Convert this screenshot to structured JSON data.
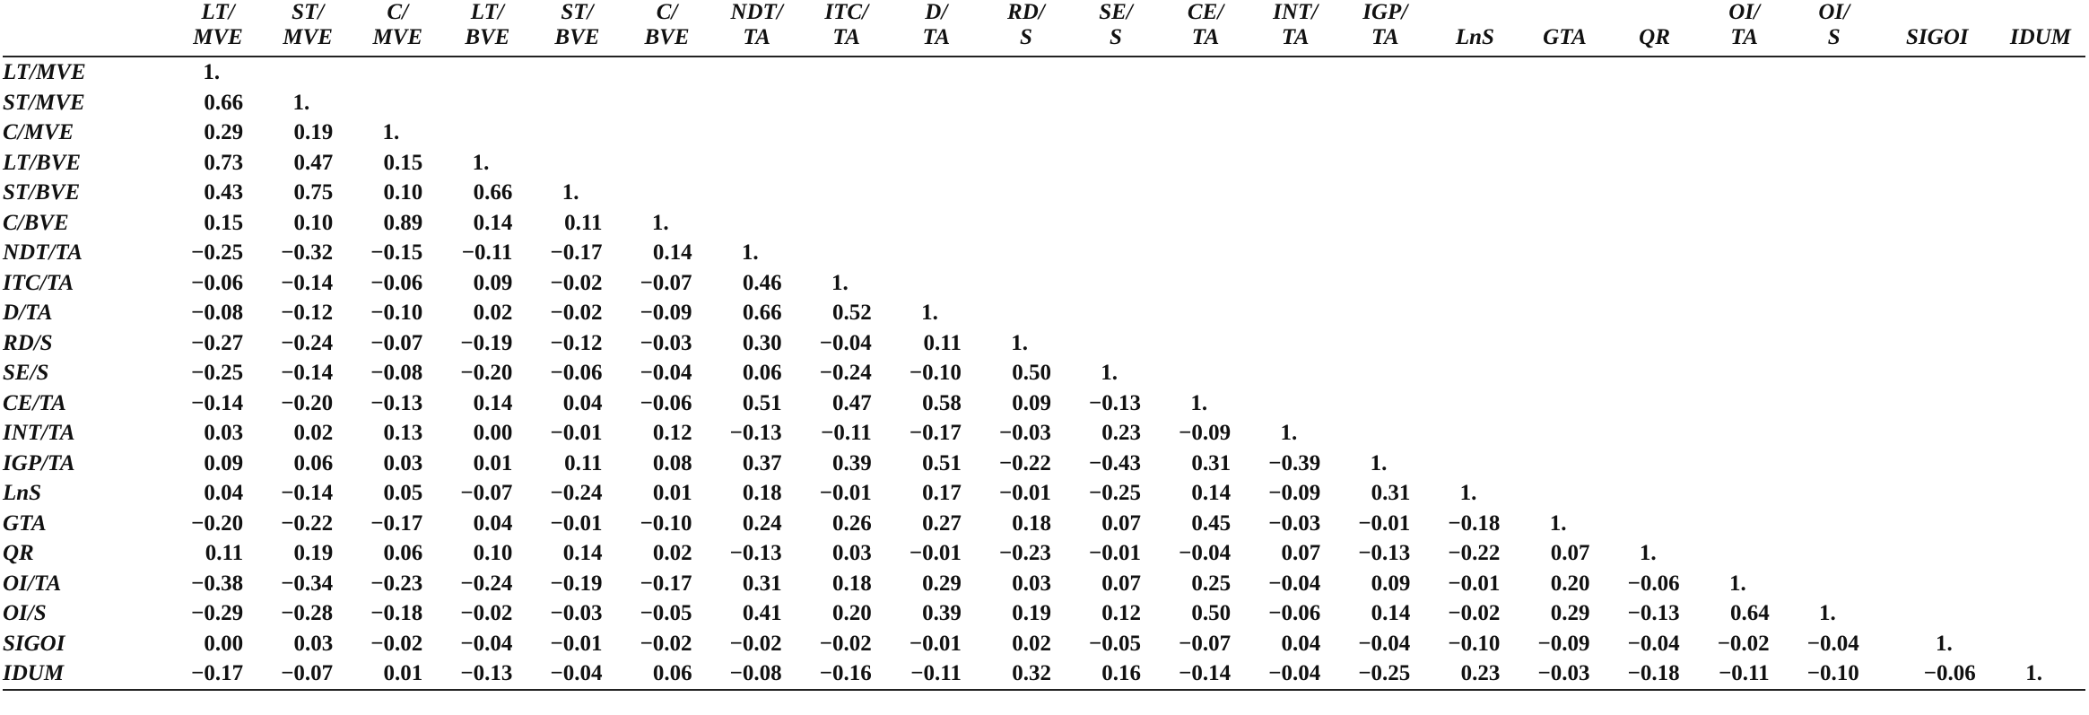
{
  "table": {
    "columns": [
      [
        "LT/",
        "MVE"
      ],
      [
        "ST/",
        "MVE"
      ],
      [
        "C/",
        "MVE"
      ],
      [
        "LT/",
        "BVE"
      ],
      [
        "ST/",
        "BVE"
      ],
      [
        "C/",
        "BVE"
      ],
      [
        "NDT/",
        "TA"
      ],
      [
        "ITC/",
        "TA"
      ],
      [
        "D/",
        "TA"
      ],
      [
        "RD/",
        "S"
      ],
      [
        "SE/",
        "S"
      ],
      [
        "CE/",
        "TA"
      ],
      [
        "INT/",
        "TA"
      ],
      [
        "IGP/",
        "TA"
      ],
      [
        "LnS"
      ],
      [
        "GTA"
      ],
      [
        "QR"
      ],
      [
        "OI/",
        "TA"
      ],
      [
        "OI/",
        "S"
      ],
      [
        "SIGOI"
      ],
      [
        "IDUM"
      ]
    ],
    "rows": [
      {
        "label": "LT/MVE",
        "values": [
          "1."
        ]
      },
      {
        "label": "ST/MVE",
        "values": [
          "0.66",
          "1."
        ]
      },
      {
        "label": "C/MVE",
        "values": [
          "0.29",
          "0.19",
          "1."
        ]
      },
      {
        "label": "LT/BVE",
        "values": [
          "0.73",
          "0.47",
          "0.15",
          "1."
        ]
      },
      {
        "label": "ST/BVE",
        "values": [
          "0.43",
          "0.75",
          "0.10",
          "0.66",
          "1."
        ]
      },
      {
        "label": "C/BVE",
        "values": [
          "0.15",
          "0.10",
          "0.89",
          "0.14",
          "0.11",
          "1."
        ]
      },
      {
        "label": "NDT/TA",
        "values": [
          "−0.25",
          "−0.32",
          "−0.15",
          "−0.11",
          "−0.17",
          "0.14",
          "1."
        ]
      },
      {
        "label": "ITC/TA",
        "values": [
          "−0.06",
          "−0.14",
          "−0.06",
          "0.09",
          "−0.02",
          "−0.07",
          "0.46",
          "1."
        ]
      },
      {
        "label": "D/TA",
        "values": [
          "−0.08",
          "−0.12",
          "−0.10",
          "0.02",
          "−0.02",
          "−0.09",
          "0.66",
          "0.52",
          "1."
        ]
      },
      {
        "label": "RD/S",
        "values": [
          "−0.27",
          "−0.24",
          "−0.07",
          "−0.19",
          "−0.12",
          "−0.03",
          "0.30",
          "−0.04",
          "0.11",
          "1."
        ]
      },
      {
        "label": "SE/S",
        "values": [
          "−0.25",
          "−0.14",
          "−0.08",
          "−0.20",
          "−0.06",
          "−0.04",
          "0.06",
          "−0.24",
          "−0.10",
          "0.50",
          "1."
        ]
      },
      {
        "label": "CE/TA",
        "values": [
          "−0.14",
          "−0.20",
          "−0.13",
          "0.14",
          "0.04",
          "−0.06",
          "0.51",
          "0.47",
          "0.58",
          "0.09",
          "−0.13",
          "1."
        ]
      },
      {
        "label": "INT/TA",
        "values": [
          "0.03",
          "0.02",
          "0.13",
          "0.00",
          "−0.01",
          "0.12",
          "−0.13",
          "−0.11",
          "−0.17",
          "−0.03",
          "0.23",
          "−0.09",
          "1."
        ]
      },
      {
        "label": "IGP/TA",
        "values": [
          "0.09",
          "0.06",
          "0.03",
          "0.01",
          "0.11",
          "0.08",
          "0.37",
          "0.39",
          "0.51",
          "−0.22",
          "−0.43",
          "0.31",
          "−0.39",
          "1."
        ]
      },
      {
        "label": "LnS",
        "values": [
          "0.04",
          "−0.14",
          "0.05",
          "−0.07",
          "−0.24",
          "0.01",
          "0.18",
          "−0.01",
          "0.17",
          "−0.01",
          "−0.25",
          "0.14",
          "−0.09",
          "0.31",
          "1."
        ]
      },
      {
        "label": "GTA",
        "values": [
          "−0.20",
          "−0.22",
          "−0.17",
          "0.04",
          "−0.01",
          "−0.10",
          "0.24",
          "0.26",
          "0.27",
          "0.18",
          "0.07",
          "0.45",
          "−0.03",
          "−0.01",
          "−0.18",
          "1."
        ]
      },
      {
        "label": "QR",
        "values": [
          "0.11",
          "0.19",
          "0.06",
          "0.10",
          "0.14",
          "0.02",
          "−0.13",
          "0.03",
          "−0.01",
          "−0.23",
          "−0.01",
          "−0.04",
          "0.07",
          "−0.13",
          "−0.22",
          "0.07",
          "1."
        ]
      },
      {
        "label": "OI/TA",
        "values": [
          "−0.38",
          "−0.34",
          "−0.23",
          "−0.24",
          "−0.19",
          "−0.17",
          "0.31",
          "0.18",
          "0.29",
          "0.03",
          "0.07",
          "0.25",
          "−0.04",
          "0.09",
          "−0.01",
          "0.20",
          "−0.06",
          "1."
        ]
      },
      {
        "label": "OI/S",
        "values": [
          "−0.29",
          "−0.28",
          "−0.18",
          "−0.02",
          "−0.03",
          "−0.05",
          "0.41",
          "0.20",
          "0.39",
          "0.19",
          "0.12",
          "0.50",
          "−0.06",
          "0.14",
          "−0.02",
          "0.29",
          "−0.13",
          "0.64",
          "1."
        ]
      },
      {
        "label": "SIGOI",
        "values": [
          "0.00",
          "0.03",
          "−0.02",
          "−0.04",
          "−0.01",
          "−0.02",
          "−0.02",
          "−0.02",
          "−0.01",
          "0.02",
          "−0.05",
          "−0.07",
          "0.04",
          "−0.04",
          "−0.10",
          "−0.09",
          "−0.04",
          "−0.02",
          "−0.04",
          "1."
        ]
      },
      {
        "label": "IDUM",
        "values": [
          "−0.17",
          "−0.07",
          "0.01",
          "−0.13",
          "−0.04",
          "0.06",
          "−0.08",
          "−0.16",
          "−0.11",
          "0.32",
          "0.16",
          "−0.14",
          "−0.04",
          "−0.25",
          "0.23",
          "−0.03",
          "−0.18",
          "−0.11",
          "−0.10",
          "−0.06",
          "1."
        ]
      }
    ]
  }
}
